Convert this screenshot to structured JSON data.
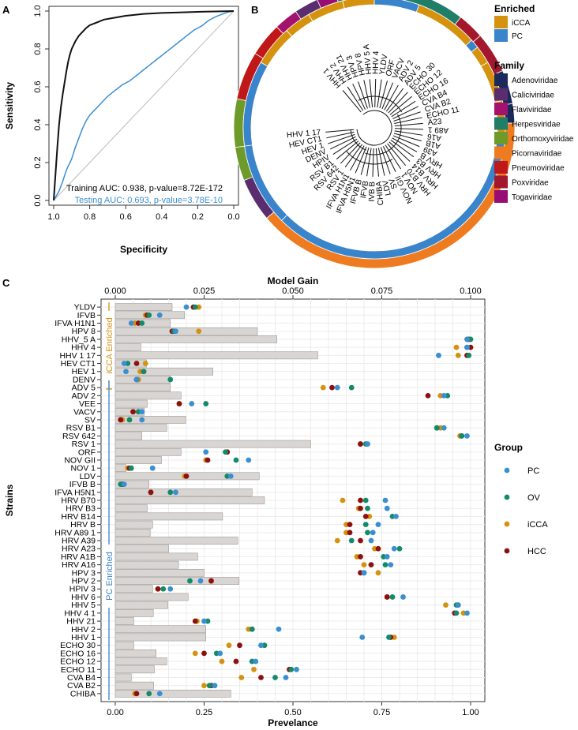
{
  "panel_labels": [
    "A",
    "B",
    "C"
  ],
  "colors": {
    "training": "#111111",
    "testing": "#3a8fd1",
    "enriched": {
      "iCCA": "#d4920f",
      "PC": "#3a84cc"
    },
    "family": {
      "Adenoviridae": "#1b2a5a",
      "Caliciviridae": "#5a2e6e",
      "Flaviviridae": "#a3136e",
      "Herpesviridae": "#1f7d68",
      "Orthomoxyviridae": "#6e9a2a",
      "Picornaviridae": "#ee7b1f",
      "Pneumoviridae": "#c01818",
      "Poxviridae": "#a3182c",
      "Togaviridae": "#980d73"
    },
    "group": {
      "PC": "#3a8fd1",
      "OV": "#138a6a",
      "iCCA": "#d4920f",
      "HCC": "#8c1010"
    }
  },
  "legend_b": {
    "enriched_title": "Enriched",
    "enriched": [
      "iCCA",
      "PC"
    ],
    "family_title": "Family",
    "family": [
      "Adenoviridae",
      "Caliciviridae",
      "Flaviviridae",
      "Herpesviridae",
      "Orthomoxyviridae",
      "Picornaviridae",
      "Pneumoviridae",
      "Poxviridae",
      "Togaviridae"
    ]
  },
  "tree_labels": [
    "HHV 1",
    "HHV 2",
    "HHV 21",
    "HPV 3",
    "HPV 8",
    "HHV 5 A",
    "HHV 4",
    "YLDV",
    "ORF",
    "VACV",
    "ADV 2",
    "ADV 5",
    "ECHO 30",
    "ECHO 12",
    "ECHO 16",
    "CVA B4",
    "CVA B2",
    "ECHO 11",
    "A23",
    "A89 1",
    "A16",
    "A1B",
    "A39",
    "HRV B",
    "HRV B3",
    "HRV B14",
    "HRV B70",
    "NOV 1",
    "NOV GII",
    "SV",
    "LDV",
    "CHIBA",
    "IVB B",
    "IFVB",
    "IFVB B",
    "IFVA H5N1",
    "IFVA H1N1",
    "RSV 1",
    "RSV 642",
    "RSV B1",
    "HPIV",
    "DENV",
    "HEV 1",
    "HEV CT1",
    "HHV 1 17"
  ],
  "legend_c": {
    "title": "Group",
    "items": [
      "PC",
      "OV",
      "iCCA",
      "HCC"
    ]
  },
  "chart_data": [
    {
      "panel": "A",
      "type": "line",
      "title": "",
      "xlabel": "Specificity",
      "ylabel": "Sensitivity",
      "xlim": [
        1.0,
        0.0
      ],
      "ylim": [
        0.0,
        1.0
      ],
      "x_ticks": [
        "1.0",
        "0.8",
        "0.6",
        "0.4",
        "0.2",
        "0.0"
      ],
      "y_ticks": [
        "0.0",
        "0.2",
        "0.4",
        "0.6",
        "0.8",
        "1.0"
      ],
      "series": [
        {
          "name": "Training",
          "label": "Training AUC: 0.938, p-value=8.72E-172",
          "x": [
            1.0,
            0.99,
            0.98,
            0.97,
            0.96,
            0.95,
            0.94,
            0.93,
            0.92,
            0.91,
            0.9,
            0.88,
            0.86,
            0.84,
            0.82,
            0.8,
            0.76,
            0.72,
            0.66,
            0.6,
            0.5,
            0.4,
            0.3,
            0.2,
            0.1,
            0.05,
            0.0
          ],
          "y": [
            0.0,
            0.14,
            0.28,
            0.4,
            0.49,
            0.56,
            0.62,
            0.68,
            0.73,
            0.77,
            0.8,
            0.84,
            0.87,
            0.89,
            0.91,
            0.925,
            0.94,
            0.955,
            0.965,
            0.975,
            0.985,
            0.99,
            0.993,
            0.996,
            0.998,
            0.999,
            1.0
          ]
        },
        {
          "name": "Testing",
          "label": "Testing AUC: 0.693, p-value=3.78E-10",
          "x": [
            1.0,
            0.97,
            0.95,
            0.93,
            0.9,
            0.88,
            0.86,
            0.84,
            0.82,
            0.8,
            0.77,
            0.74,
            0.7,
            0.66,
            0.62,
            0.58,
            0.54,
            0.5,
            0.46,
            0.42,
            0.38,
            0.34,
            0.3,
            0.26,
            0.22,
            0.18,
            0.14,
            0.1,
            0.06,
            0.03,
            0.0
          ],
          "y": [
            0.0,
            0.05,
            0.1,
            0.16,
            0.22,
            0.28,
            0.33,
            0.38,
            0.42,
            0.45,
            0.48,
            0.51,
            0.55,
            0.58,
            0.61,
            0.63,
            0.66,
            0.69,
            0.72,
            0.75,
            0.78,
            0.81,
            0.84,
            0.87,
            0.9,
            0.92,
            0.95,
            0.97,
            0.985,
            0.995,
            1.0
          ]
        },
        {
          "name": "Chance",
          "x": [
            1.0,
            0.0
          ],
          "y": [
            0.0,
            1.0
          ]
        }
      ]
    },
    {
      "panel": "C",
      "type": "bar",
      "xlabel": "Prevelance",
      "ylabel": "Strains",
      "top_label": "Model Gain",
      "xlim": [
        0.0,
        1.0
      ],
      "top_xlim": [
        0.0,
        0.1
      ],
      "x_ticks": [
        "0.00",
        "0.25",
        "0.50",
        "0.75",
        "1.00"
      ],
      "top_ticks": [
        "0.000",
        "0.025",
        "0.050",
        "0.075",
        "0.100"
      ],
      "bracket_labels": [
        "iCCA Enriched",
        "PC Enriched"
      ],
      "groups": [
        "PC",
        "OV",
        "iCCA",
        "HCC"
      ],
      "categories": [
        "YLDV",
        "IFVB",
        "IFVA H1N1",
        "HPV 8",
        "HHV_5 A",
        "HHV 4",
        "HHV 1 17",
        "HEV CT1",
        "HEV 1",
        "DENV",
        "ADV 5",
        "ADV 2",
        "VEE",
        "VACV",
        "SV",
        "RSV B1",
        "RSV 642",
        "RSV 1",
        "ORF",
        "NOV GII",
        "NOV 1",
        "LDV",
        "IFVB B",
        "IFVA H5N1",
        "HRV B70",
        "HRV B3",
        "HRV B14",
        "HRV B",
        "HRV A89 1",
        "HRV A39",
        "HRV A23",
        "HRV A1B",
        "HRV A16",
        "HPV 3",
        "HPV 2",
        "HPIV 3",
        "HHV 6",
        "HHV 5",
        "HHV 4 1",
        "HHV 21",
        "HHV 2",
        "HHV 1",
        "ECHO 30",
        "ECHO 16",
        "ECHO 12",
        "ECHO 11",
        "CVA B4",
        "CVA B2",
        "CHIBA"
      ],
      "model_gain": [
        0.016,
        0.0195,
        0.0155,
        0.04,
        0.0455,
        0.0072,
        0.057,
        0.0088,
        0.0275,
        0.0155,
        0.0155,
        0.0185,
        0.009,
        0.0082,
        0.0198,
        0.0145,
        0.0075,
        0.055,
        0.0185,
        0.013,
        0.003,
        0.0405,
        0.0095,
        0.0385,
        0.042,
        0.009,
        0.0302,
        0.0105,
        0.0098,
        0.0345,
        0.015,
        0.0232,
        0.0178,
        0.025,
        0.0348,
        0.0105,
        0.0205,
        0.0148,
        0.0107,
        0.0052,
        0.0255,
        0.0255,
        0.0052,
        0.0115,
        0.0145,
        0.011,
        0.0045,
        0.0108,
        0.0325
      ],
      "series": [
        {
          "name": "PC",
          "values": [
            0.2,
            0.125,
            0.045,
            0.17,
            0.99,
            0.99,
            0.91,
            0.025,
            0.03,
            0.06,
            0.625,
            0.925,
            0.215,
            0.075,
            0.075,
            0.925,
            0.99,
            0.71,
            0.255,
            0.375,
            0.105,
            0.325,
            0.025,
            0.17,
            0.76,
            0.765,
            0.79,
            0.74,
            0.725,
            0.72,
            0.785,
            0.765,
            0.775,
            0.7,
            0.24,
            0.155,
            0.81,
            0.965,
            0.99,
            0.25,
            0.46,
            0.695,
            0.41,
            0.295,
            0.395,
            0.51,
            0.48,
            0.28,
            0.125
          ]
        },
        {
          "name": "OV",
          "values": [
            0.225,
            0.095,
            0.075,
            0.165,
            1.0,
            0.99,
            0.995,
            0.035,
            0.08,
            0.155,
            0.665,
            0.935,
            0.255,
            0.065,
            0.04,
            0.905,
            0.975,
            0.705,
            0.31,
            0.34,
            0.045,
            0.315,
            0.015,
            0.155,
            0.705,
            0.71,
            0.78,
            0.705,
            0.71,
            0.665,
            0.8,
            0.755,
            0.76,
            0.7,
            0.21,
            0.135,
            0.78,
            0.96,
            0.96,
            0.26,
            0.385,
            0.77,
            0.42,
            0.285,
            0.385,
            0.495,
            0.45,
            0.265,
            0.095
          ]
        },
        {
          "name": "iCCA",
          "values": [
            0.235,
            0.085,
            0.055,
            0.235,
            0.99,
            0.96,
            0.965,
            0.085,
            0.07,
            0.065,
            0.585,
            0.915,
            0.18,
            0.05,
            0.02,
            0.915,
            0.97,
            0.69,
            0.315,
            0.255,
            0.035,
            0.195,
            0.02,
            0.1,
            0.64,
            0.685,
            0.715,
            0.65,
            0.65,
            0.625,
            0.73,
            0.68,
            0.7,
            0.74,
            0.27,
            0.12,
            0.765,
            0.93,
            0.98,
            0.23,
            0.375,
            0.785,
            0.32,
            0.225,
            0.3,
            0.39,
            0.355,
            0.25,
            0.055
          ]
        },
        {
          "name": "HCC",
          "values": [
            0.22,
            0.09,
            0.065,
            0.16,
            0.995,
            1.0,
            0.99,
            0.06,
            0.08,
            0.06,
            0.61,
            0.88,
            0.18,
            0.05,
            0.015,
            0.905,
            0.975,
            0.69,
            0.315,
            0.26,
            0.04,
            0.2,
            0.02,
            0.1,
            0.69,
            0.69,
            0.705,
            0.66,
            0.66,
            0.69,
            0.74,
            0.69,
            0.72,
            0.69,
            0.27,
            0.12,
            0.765,
            0.965,
            0.955,
            0.225,
            0.385,
            0.775,
            0.35,
            0.25,
            0.34,
            0.49,
            0.41,
            0.27,
            0.06
          ]
        }
      ]
    }
  ]
}
